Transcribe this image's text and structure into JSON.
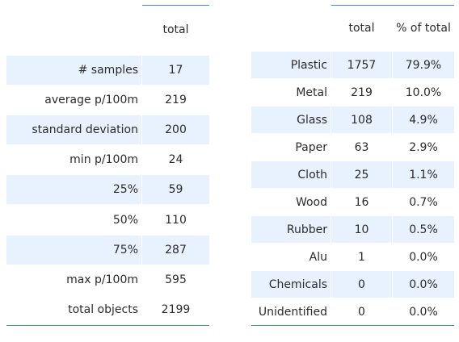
{
  "summary_table": {
    "header": "total",
    "rows": [
      {
        "label": "# samples",
        "value": "17"
      },
      {
        "label": "average p/100m",
        "value": "219"
      },
      {
        "label": "standard deviation",
        "value": "200"
      },
      {
        "label": "min p/100m",
        "value": "24"
      },
      {
        "label": "25%",
        "value": "59"
      },
      {
        "label": "50%",
        "value": "110"
      },
      {
        "label": "75%",
        "value": "287"
      },
      {
        "label": "max p/100m",
        "value": "595"
      },
      {
        "label": "total objects",
        "value": "2199"
      }
    ]
  },
  "material_table": {
    "headers": [
      "total",
      "% of total"
    ],
    "rows": [
      {
        "label": "Plastic",
        "total": "1757",
        "pct": "79.9%"
      },
      {
        "label": "Metal",
        "total": "219",
        "pct": "10.0%"
      },
      {
        "label": "Glass",
        "total": "108",
        "pct": "4.9%"
      },
      {
        "label": "Paper",
        "total": "63",
        "pct": "2.9%"
      },
      {
        "label": "Cloth",
        "total": "25",
        "pct": "1.1%"
      },
      {
        "label": "Wood",
        "total": "16",
        "pct": "0.7%"
      },
      {
        "label": "Rubber",
        "total": "10",
        "pct": "0.5%"
      },
      {
        "label": "Alu",
        "total": "1",
        "pct": "0.0%"
      },
      {
        "label": "Chemicals",
        "total": "0",
        "pct": "0.0%"
      },
      {
        "label": "Unidentified",
        "total": "0",
        "pct": "0.0%"
      }
    ]
  },
  "colors": {
    "row_shade": "#e8f2fe",
    "rule_line": "#3b8ec9"
  }
}
